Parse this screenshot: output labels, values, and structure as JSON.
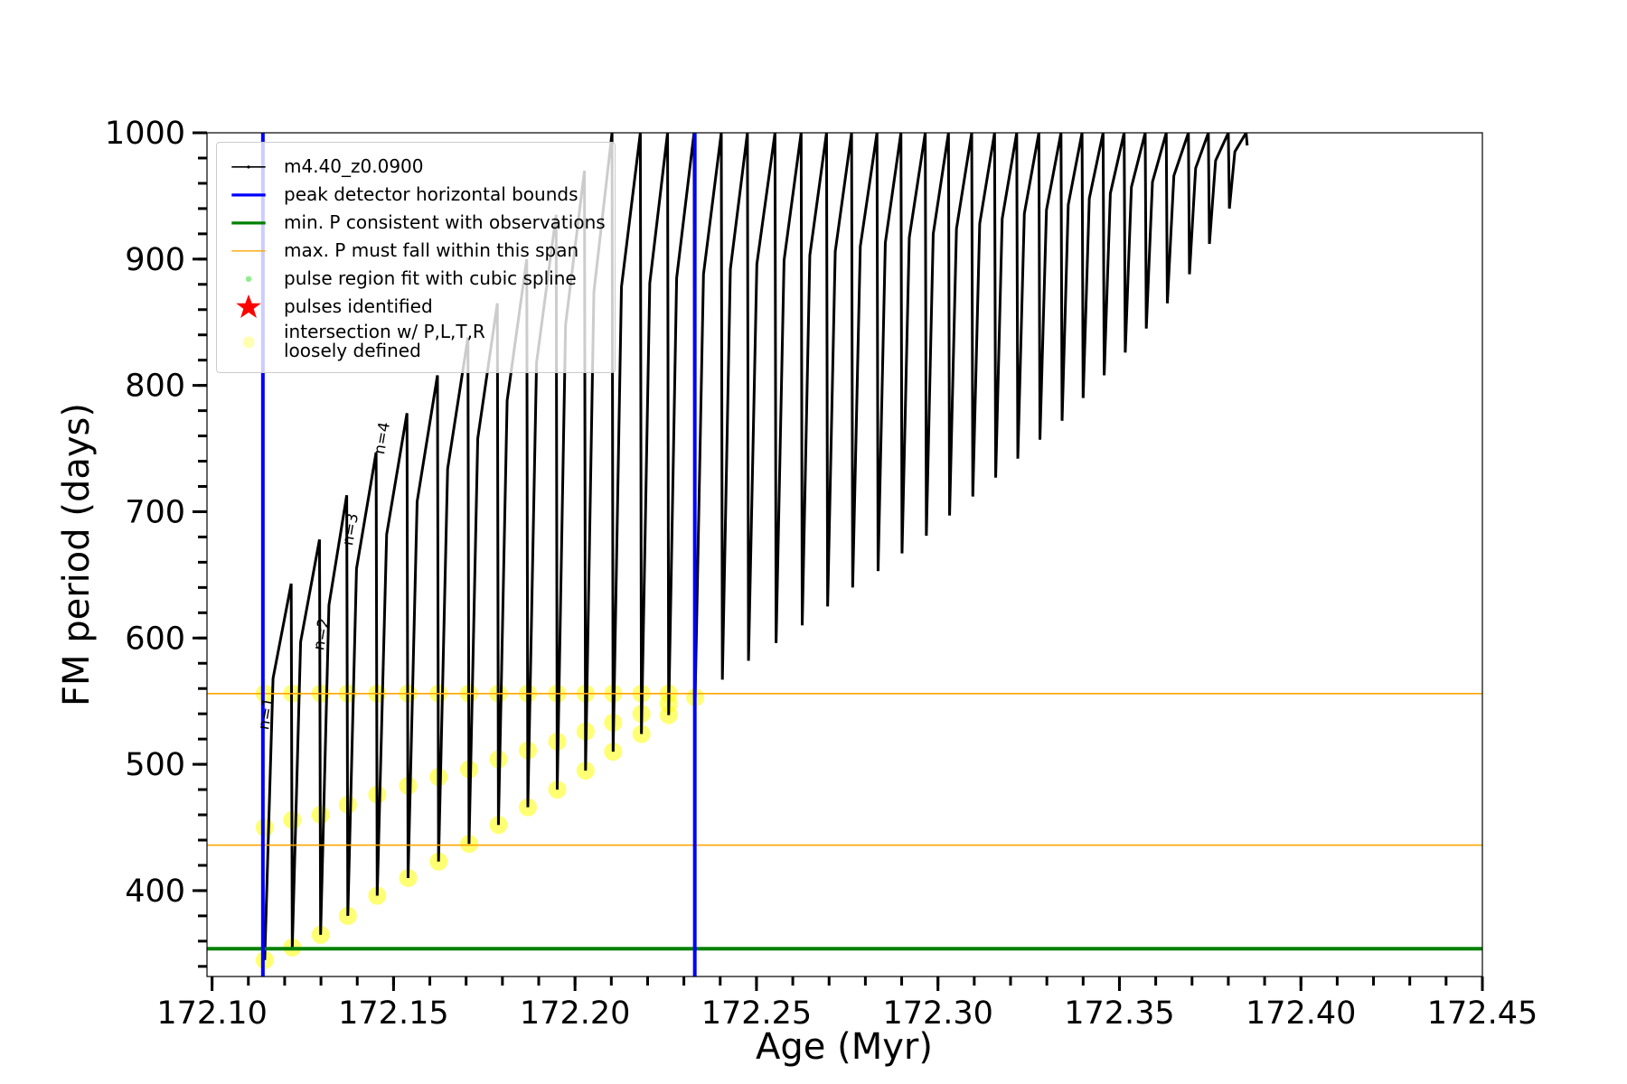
{
  "chart_data": {
    "type": "line",
    "xlabel": "Age (Myr)",
    "ylabel": "FM period (days)",
    "xlim": [
      172.0986,
      172.45
    ],
    "ylim": [
      332,
      1000
    ],
    "xticks": [
      {
        "value": 172.1,
        "label": "172.10"
      },
      172.15,
      {
        "value": 172.2,
        "label": "172.20"
      },
      172.25,
      {
        "value": 172.3,
        "label": "172.30"
      },
      172.35,
      {
        "value": 172.4,
        "label": "172.40"
      },
      172.45
    ],
    "yticks": [
      400,
      500,
      600,
      700,
      800,
      900,
      1000
    ],
    "xminor": 0.01,
    "yminor": 20,
    "legend_loc": "upper left",
    "series": [
      {
        "name": "m4.40_z0.0900",
        "color": "#000000",
        "kind": "line",
        "x": [
          172.1145,
          172.1168,
          172.1218,
          172.1221,
          172.1244,
          172.1296,
          172.1299,
          172.1322,
          172.1371,
          172.1374,
          172.1398,
          172.1452,
          172.1455,
          172.1481,
          172.1537,
          172.154,
          172.1565,
          172.1621,
          172.1624,
          172.1649,
          172.1705,
          172.1708,
          172.1732,
          172.1786,
          172.1789,
          172.1813,
          172.1867,
          172.187,
          172.1894,
          172.1948,
          172.1951,
          172.1974,
          172.2026,
          172.2029,
          172.2052,
          172.2102,
          172.2105,
          172.2128,
          172.218,
          172.2183,
          172.2206,
          172.2255,
          172.2258,
          172.228,
          172.2328,
          172.2331,
          172.2354,
          172.2403,
          172.2406,
          172.2428,
          172.2475,
          172.2478,
          172.2501,
          172.2551,
          172.2554,
          172.2576,
          172.2623,
          172.2626,
          172.2647,
          172.2693,
          172.2696,
          172.2717,
          172.2762,
          172.2765,
          172.2786,
          172.2832,
          172.2835,
          172.2855,
          172.2898,
          172.2901,
          172.2921,
          172.2965,
          172.2968,
          172.2987,
          172.3029,
          172.3032,
          172.3051,
          172.3093,
          172.3096,
          172.3115,
          172.3156,
          172.3159,
          172.3177,
          172.3217,
          172.322,
          172.3238,
          172.3278,
          172.3281,
          172.3299,
          172.3339,
          172.3342,
          172.3359,
          172.3397,
          172.34,
          172.3417,
          172.3455,
          172.3458,
          172.3475,
          172.3513,
          172.3516,
          172.3533,
          172.3571,
          172.3574,
          172.3591,
          172.3629,
          172.3632,
          172.365,
          172.369,
          172.3693,
          172.371,
          172.3745,
          172.3748,
          172.3765,
          172.38,
          172.3803,
          172.3818,
          172.3849,
          172.3852
        ],
        "values": [
          345,
          568,
          643,
          355,
          597,
          678,
          365,
          626,
          713,
          380,
          655,
          747,
          396,
          682,
          778,
          410,
          708,
          808,
          423,
          734,
          838,
          437,
          758,
          865,
          452,
          788,
          900,
          466,
          818,
          935,
          480,
          848,
          970,
          495,
          874,
          1000,
          510,
          878,
          1000,
          524,
          881,
          1000,
          539,
          885,
          1000,
          553,
          888,
          1000,
          567,
          892,
          1000,
          582,
          896,
          1000,
          596,
          899,
          1000,
          610,
          903,
          1000,
          625,
          906,
          1000,
          640,
          910,
          1000,
          653,
          913,
          1000,
          667,
          917,
          1000,
          681,
          920,
          1000,
          697,
          924,
          1000,
          712,
          928,
          1000,
          727,
          932,
          1000,
          742,
          936,
          1000,
          757,
          939,
          1000,
          772,
          943,
          1000,
          790,
          948,
          1000,
          808,
          952,
          1000,
          826,
          957,
          1000,
          845,
          961,
          1000,
          865,
          966,
          1000,
          888,
          972,
          1000,
          912,
          978,
          1000,
          940,
          985,
          1000,
          990
        ]
      },
      {
        "name": "intersection w/ P,L,T,R\nloosely defined",
        "color": "#ffff00",
        "kind": "scatter",
        "x": [
          172.1145,
          172.1145,
          172.1145,
          172.1221,
          172.1221,
          172.1221,
          172.1299,
          172.1299,
          172.1299,
          172.1374,
          172.1374,
          172.1374,
          172.1455,
          172.1455,
          172.1455,
          172.154,
          172.154,
          172.154,
          172.1624,
          172.1624,
          172.1624,
          172.1708,
          172.1708,
          172.1708,
          172.1789,
          172.1789,
          172.1789,
          172.187,
          172.187,
          172.187,
          172.1951,
          172.1951,
          172.1951,
          172.2029,
          172.2029,
          172.2029,
          172.2105,
          172.2105,
          172.2105,
          172.2183,
          172.2183,
          172.2183,
          172.2258,
          172.2258,
          172.2258,
          172.2331
        ],
        "values": [
          345,
          450,
          556,
          355,
          456,
          556,
          365,
          460,
          556,
          380,
          468,
          556,
          396,
          476,
          556,
          410,
          483,
          556,
          423,
          490,
          556,
          437,
          496,
          556,
          452,
          504,
          556,
          466,
          511,
          556,
          480,
          518,
          556,
          495,
          526,
          556,
          510,
          533,
          556,
          524,
          540,
          556,
          539,
          548,
          556,
          553
        ]
      }
    ],
    "vlines": {
      "name": "peak detector horizontal bounds",
      "color": "#0000ff",
      "values": [
        172.114,
        172.233
      ]
    },
    "min_line": {
      "name": "min. P consistent with observations",
      "color": "#008000",
      "value": 354
    },
    "max_span": {
      "name": "max. P must fall within this span",
      "color": "#ffa500",
      "values": [
        436,
        556
      ]
    },
    "legend_markers": [
      {
        "name": "pulse region fit with cubic spline",
        "color": "#90ee90",
        "marker": "dot"
      },
      {
        "name": "pulses identified",
        "color": "#ff0000",
        "marker": "star"
      }
    ],
    "annotations": [
      "n=1",
      "n=2",
      "n=3",
      "n=4"
    ]
  }
}
